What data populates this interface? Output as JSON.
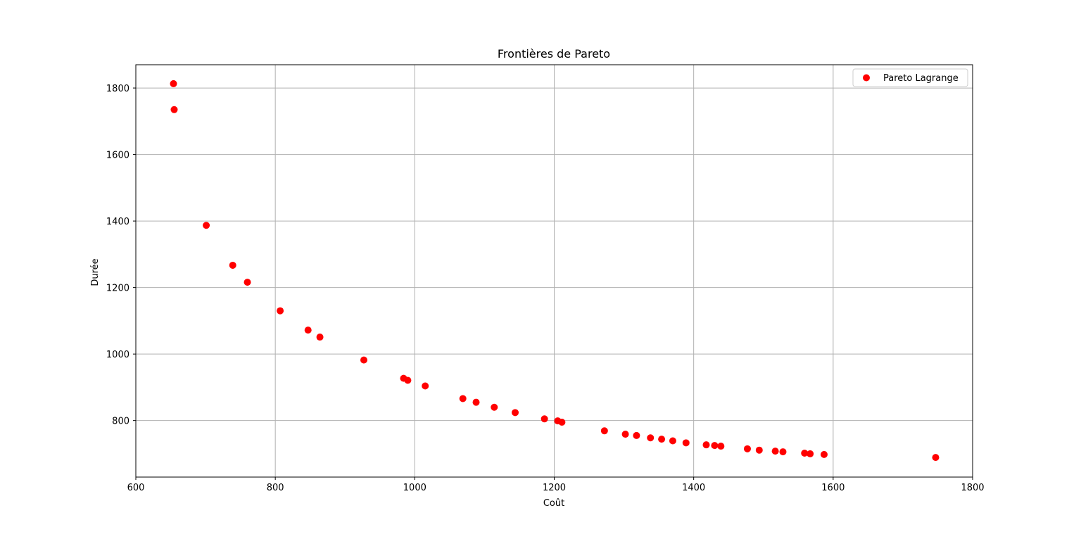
{
  "chart_data": {
    "type": "scatter",
    "title": "Frontières de Pareto",
    "xlabel": "Coût",
    "ylabel": "Durée",
    "xlim": [
      600,
      1800
    ],
    "ylim": [
      630,
      1870
    ],
    "xticks": [
      600,
      800,
      1000,
      1200,
      1400,
      1600,
      1800
    ],
    "yticks": [
      800,
      1000,
      1200,
      1400,
      1600,
      1800
    ],
    "grid": true,
    "legend_position": "top-right",
    "series": [
      {
        "name": "Pareto Lagrange",
        "color": "#ff0000",
        "points": [
          [
            654,
            1813
          ],
          [
            655,
            1735
          ],
          [
            701,
            1387
          ],
          [
            739,
            1267
          ],
          [
            760,
            1216
          ],
          [
            807,
            1130
          ],
          [
            847,
            1072
          ],
          [
            864,
            1051
          ],
          [
            927,
            982
          ],
          [
            984,
            927
          ],
          [
            990,
            921
          ],
          [
            1015,
            904
          ],
          [
            1069,
            866
          ],
          [
            1088,
            855
          ],
          [
            1114,
            840
          ],
          [
            1144,
            824
          ],
          [
            1186,
            805
          ],
          [
            1205,
            799
          ],
          [
            1211,
            795
          ],
          [
            1272,
            769
          ],
          [
            1302,
            759
          ],
          [
            1318,
            755
          ],
          [
            1338,
            748
          ],
          [
            1354,
            744
          ],
          [
            1370,
            739
          ],
          [
            1389,
            733
          ],
          [
            1418,
            727
          ],
          [
            1430,
            725
          ],
          [
            1439,
            723
          ],
          [
            1477,
            715
          ],
          [
            1494,
            711
          ],
          [
            1517,
            708
          ],
          [
            1528,
            706
          ],
          [
            1559,
            702
          ],
          [
            1567,
            700
          ],
          [
            1587,
            698
          ],
          [
            1747,
            689
          ]
        ]
      }
    ]
  }
}
